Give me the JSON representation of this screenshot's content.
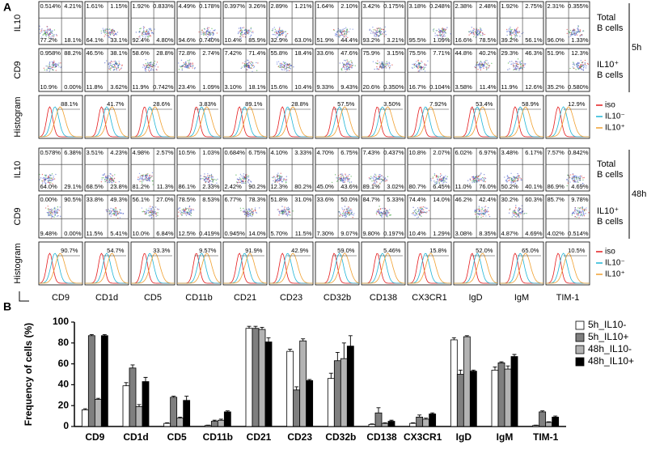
{
  "panel_a": {
    "label": "A",
    "markers": [
      "CD9",
      "CD1d",
      "CD5",
      "CD11b",
      "CD21",
      "CD23",
      "CD32b",
      "CD138",
      "CX3CR1",
      "IgD",
      "IgM",
      "TIM-1"
    ],
    "blocks": [
      {
        "time": "5h",
        "rows": [
          {
            "y_label": "IL10",
            "population": [
              "Total",
              "B cells"
            ],
            "plots": [
              [
                "0.514%",
                "4.21%",
                "77.2%",
                "18.1%"
              ],
              [
                "1.61%",
                "1.15%",
                "64.1%",
                "33.1%"
              ],
              [
                "1.92%",
                "0.833%",
                "92.4%",
                "4.80%"
              ],
              [
                "4.49%",
                "0.178%",
                "94.6%",
                "0.740%"
              ],
              [
                "0.397%",
                "3.26%",
                "10.4%",
                "85.9%"
              ],
              [
                "2.89%",
                "1.21%",
                "32.9%",
                "63.0%"
              ],
              [
                "1.64%",
                "2.10%",
                "51.9%",
                "44.4%"
              ],
              [
                "3.42%",
                "0.175%",
                "93.2%",
                "3.21%"
              ],
              [
                "3.18%",
                "0.248%",
                "95.5%",
                "1.09%"
              ],
              [
                "2.38%",
                "2.48%",
                "16.6%",
                "78.5%"
              ],
              [
                "1.92%",
                "2.75%",
                "39.2%",
                "56.1%"
              ],
              [
                "2.31%",
                "0.355%",
                "96.0%",
                "1.33%"
              ]
            ]
          },
          {
            "y_label": "CD9",
            "population": [
              "IL10⁺",
              "B cells"
            ],
            "plots": [
              [
                "0.958%",
                "88.2%",
                "10.9%",
                "0.00%"
              ],
              [
                "46.5%",
                "38.1%",
                "11.8%",
                "3.62%"
              ],
              [
                "58.6%",
                "28.8%",
                "11.9%",
                "0.742%"
              ],
              [
                "72.8%",
                "2.74%",
                "23.4%",
                "1.09%"
              ],
              [
                "7.42%",
                "71.4%",
                "3.10%",
                "18.1%"
              ],
              [
                "55.8%",
                "18.4%",
                "15.6%",
                "10.4%"
              ],
              [
                "33.6%",
                "47.6%",
                "9.33%",
                "9.43%"
              ],
              [
                "75.9%",
                "3.15%",
                "20.6%",
                "0.350%"
              ],
              [
                "75.5%",
                "7.71%",
                "16.7%",
                "0.104%"
              ],
              [
                "44.8%",
                "40.2%",
                "3.58%",
                "11.4%"
              ],
              [
                "29.3%",
                "46.3%",
                "11.9%",
                "12.6%"
              ],
              [
                "51.9%",
                "12.3%",
                "35.2%",
                "0.580%"
              ]
            ]
          },
          {
            "y_label": "Histogram",
            "legend": [
              "iso",
              "IL10⁻",
              "IL10⁺"
            ],
            "values": [
              "88.1%",
              "41.7%",
              "28.6%",
              "3.83%",
              "89.1%",
              "28.8%",
              "57.5%",
              "3.50%",
              "7.92%",
              "53.4%",
              "58.9%",
              "12.9%"
            ]
          }
        ]
      },
      {
        "time": "48h",
        "rows": [
          {
            "y_label": "IL10",
            "population": [
              "Total",
              "B cells"
            ],
            "plots": [
              [
                "0.578%",
                "6.38%",
                "64.0%",
                "29.1%"
              ],
              [
                "3.51%",
                "4.23%",
                "68.5%",
                "23.8%"
              ],
              [
                "4.98%",
                "2.57%",
                "81.2%",
                "11.3%"
              ],
              [
                "10.5%",
                "1.03%",
                "86.1%",
                "2.33%"
              ],
              [
                "0.684%",
                "6.75%",
                "2.42%",
                "90.2%"
              ],
              [
                "4.10%",
                "3.33%",
                "12.3%",
                "80.2%"
              ],
              [
                "4.70%",
                "6.75%",
                "45.0%",
                "43.6%"
              ],
              [
                "7.43%",
                "0.437%",
                "89.1%",
                "3.02%"
              ],
              [
                "10.8%",
                "2.07%",
                "80.7%",
                "6.45%"
              ],
              [
                "6.02%",
                "6.97%",
                "11.0%",
                "76.0%"
              ],
              [
                "3.48%",
                "6.17%",
                "50.2%",
                "40.1%"
              ],
              [
                "7.57%",
                "0.842%",
                "86.9%",
                "4.69%"
              ]
            ]
          },
          {
            "y_label": "CD9",
            "population": [
              "IL10⁺",
              "B cells"
            ],
            "plots": [
              [
                "0.00%",
                "90.5%",
                "9.48%",
                "0.00%"
              ],
              [
                "33.8%",
                "49.3%",
                "11.5%",
                "5.41%"
              ],
              [
                "56.1%",
                "27.0%",
                "10.0%",
                "6.84%"
              ],
              [
                "78.5%",
                "8.53%",
                "12.5%",
                "0.419%"
              ],
              [
                "6.77%",
                "78.3%",
                "0.945%",
                "14.0%"
              ],
              [
                "51.8%",
                "31.0%",
                "5.70%",
                "11.5%"
              ],
              [
                "33.6%",
                "50.0%",
                "7.30%",
                "9.07%"
              ],
              [
                "84.7%",
                "5.33%",
                "9.80%",
                "0.197%"
              ],
              [
                "74.4%",
                "14.0%",
                "10.4%",
                "1.29%"
              ],
              [
                "46.2%",
                "42.4%",
                "3.08%",
                "8.35%"
              ],
              [
                "30.2%",
                "60.3%",
                "4.87%",
                "4.69%"
              ],
              [
                "85.7%",
                "9.78%",
                "4.02%",
                "0.514%"
              ]
            ]
          },
          {
            "y_label": "Histogram",
            "legend": [
              "iso",
              "IL10⁻",
              "IL10⁺"
            ],
            "values": [
              "90.7%",
              "54.7%",
              "33.3%",
              "9.57%",
              "91.9%",
              "42.9%",
              "59.0%",
              "5.46%",
              "15.8%",
              "52.0%",
              "65.0%",
              "10.5%"
            ]
          }
        ]
      }
    ]
  },
  "panel_b_label": "B",
  "chart_data": {
    "type": "bar",
    "ylabel": "Frequency of cells (%)",
    "categories": [
      "CD9",
      "CD1d",
      "CD5",
      "CD11b",
      "CD21",
      "CD23",
      "CD32b",
      "CD138",
      "CX3CR1",
      "IgD",
      "IgM",
      "TIM-1"
    ],
    "series": [
      {
        "name": "5h_IL10-",
        "color": "#ffffff",
        "values": [
          16,
          39,
          3,
          1,
          94,
          72,
          46,
          2,
          3,
          83,
          54,
          1
        ],
        "errors": [
          1,
          3,
          0.5,
          0.3,
          2,
          2,
          5,
          0.5,
          0.5,
          2,
          3,
          0.3
        ]
      },
      {
        "name": "5h_IL10+",
        "color": "#7f7f7f",
        "values": [
          87,
          56,
          28,
          5,
          94,
          35,
          63,
          13,
          9,
          50,
          61,
          14
        ],
        "errors": [
          1,
          3,
          1,
          1,
          2,
          3,
          8,
          5,
          2,
          4,
          1,
          1
        ]
      },
      {
        "name": "48h_IL10-",
        "color": "#b3b3b3",
        "values": [
          26,
          19,
          8,
          6,
          93,
          82,
          65,
          3,
          7,
          86,
          55,
          4
        ],
        "errors": [
          1,
          2,
          1,
          1,
          2,
          2,
          15,
          0.5,
          1,
          1,
          3,
          0.5
        ]
      },
      {
        "name": "48h_IL10+",
        "color": "#000000",
        "values": [
          87,
          43,
          25,
          14,
          81,
          44,
          77,
          5,
          12,
          53,
          67,
          9
        ],
        "errors": [
          1,
          4,
          4,
          1,
          4,
          1,
          10,
          1,
          1,
          1,
          2,
          1
        ]
      }
    ],
    "ylim": [
      0,
      100
    ],
    "yticks": [
      0,
      20,
      40,
      60,
      80,
      100
    ],
    "legend": "upper right"
  }
}
